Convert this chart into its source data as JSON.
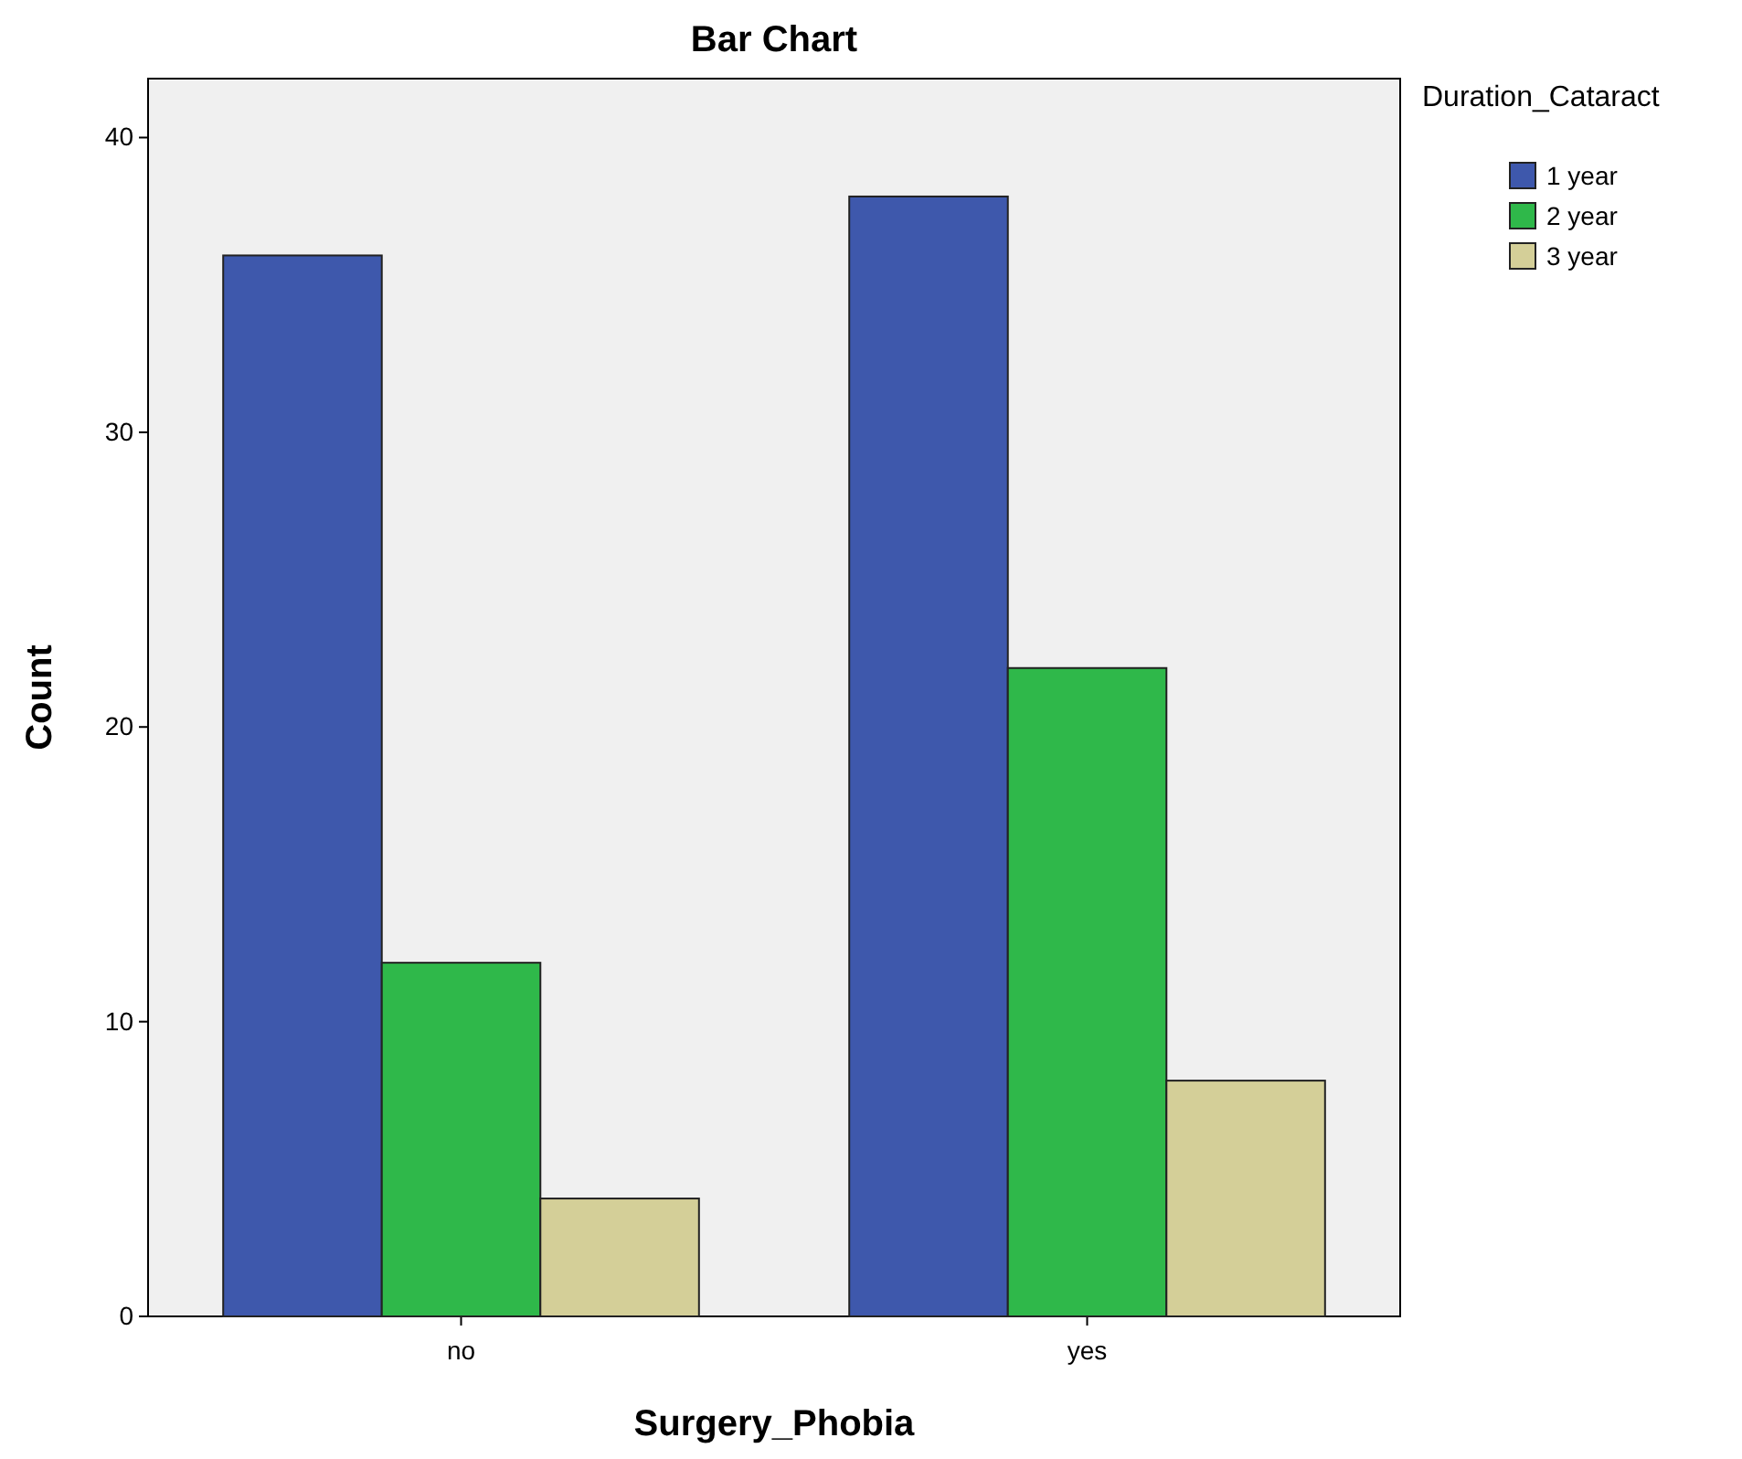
{
  "chart_data": {
    "type": "bar",
    "title": "Bar Chart",
    "xlabel": "Surgery_Phobia",
    "ylabel": "Count",
    "legend_title": "Duration_Cataract",
    "categories": [
      "no",
      "yes"
    ],
    "series": [
      {
        "name": "1 year",
        "color": "#3e58ac",
        "values": [
          36,
          38
        ]
      },
      {
        "name": "2 year",
        "color": "#2fb84a",
        "values": [
          12,
          22
        ]
      },
      {
        "name": "3 year",
        "color": "#d4cf98",
        "values": [
          4,
          8
        ]
      }
    ],
    "ylim": [
      0,
      42
    ],
    "yticks": [
      0,
      10,
      20,
      30,
      40
    ],
    "grid": false,
    "legend": "top right"
  }
}
